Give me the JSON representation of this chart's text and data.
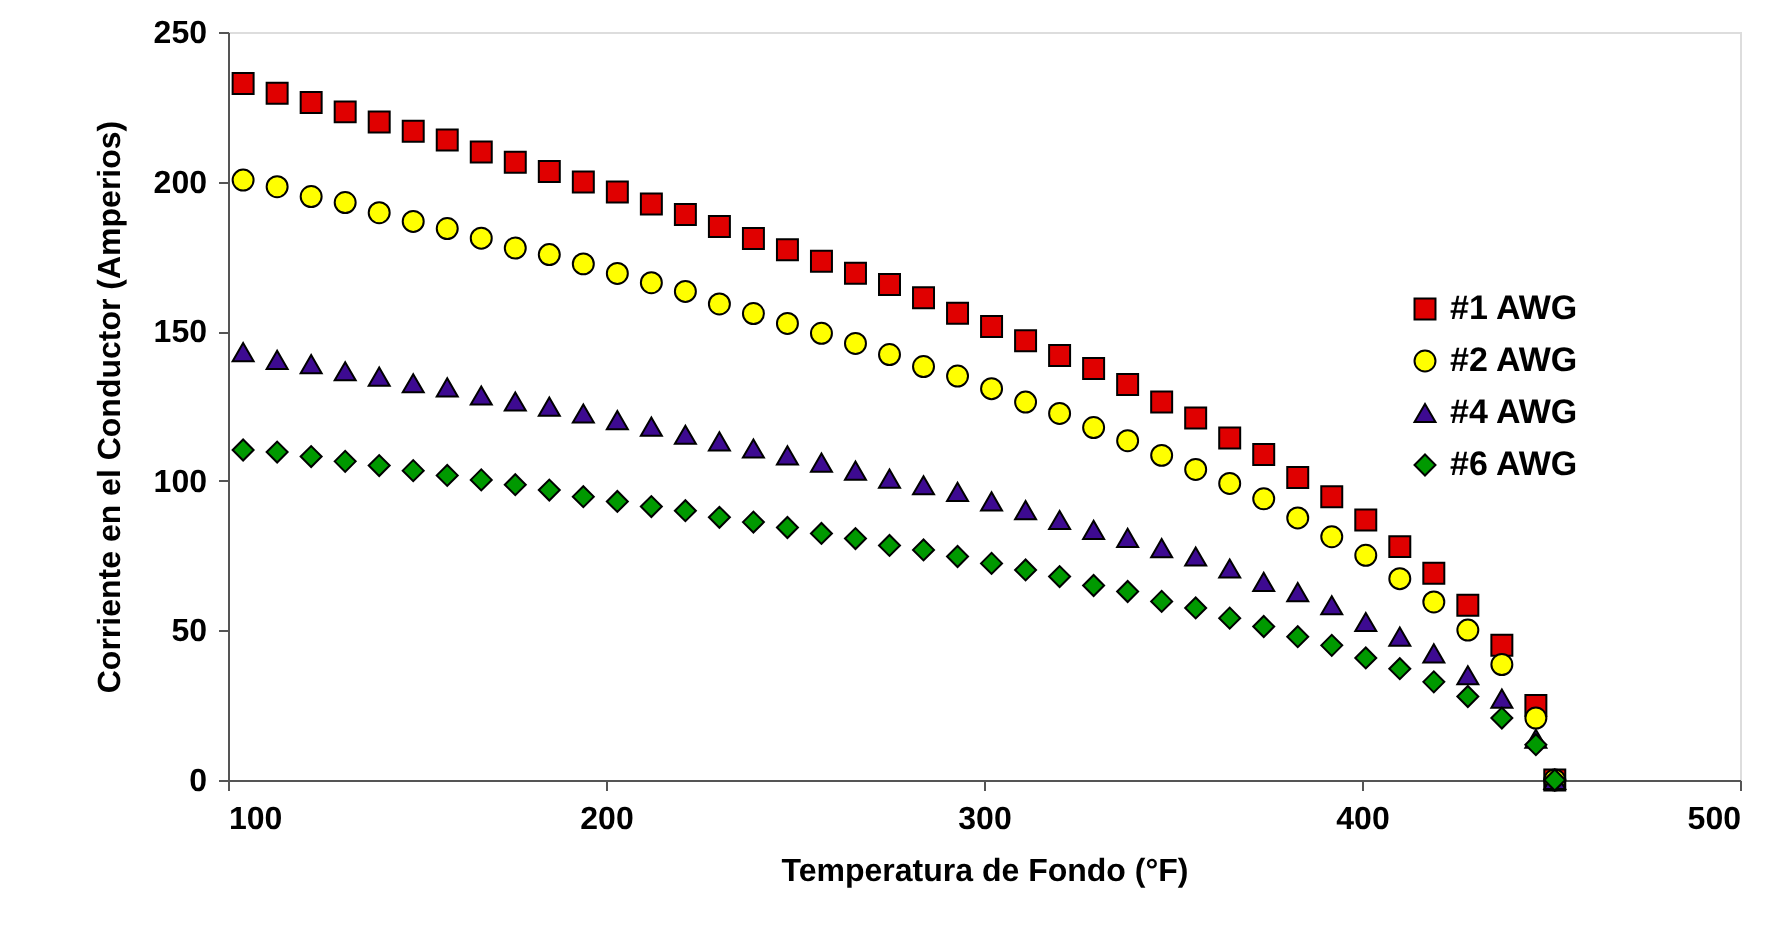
{
  "chart_data": {
    "type": "scatter",
    "xlabel": "Temperatura de Fondo (°F)",
    "ylabel": "Corriente en el Conductor (Amperios)",
    "x": [
      104,
      113,
      122,
      131,
      140,
      149,
      158,
      167,
      176,
      185,
      194,
      203,
      212,
      221,
      230,
      239,
      248,
      257,
      266,
      275,
      284,
      293,
      302,
      311,
      320,
      329,
      338,
      347,
      356,
      365,
      374,
      383,
      392,
      401,
      410,
      419,
      428,
      437,
      446,
      451
    ],
    "xlim": [
      100,
      500
    ],
    "xticks": [
      100,
      200,
      300,
      400,
      500
    ],
    "ylim": [
      0,
      250
    ],
    "yticks": [
      0,
      50,
      100,
      150,
      200,
      250
    ],
    "grid": false,
    "legend": "right",
    "series": [
      {
        "name": "#1 AWG",
        "color": "#e00000",
        "marker": "square",
        "values": [
          232.8,
          229.5,
          226.4,
          223.3,
          219.9,
          216.8,
          213.9,
          209.9,
          206.5,
          203.4,
          199.9,
          196.5,
          192.5,
          189.0,
          185.0,
          181.0,
          177.2,
          173.4,
          169.4,
          165.6,
          161.2,
          156.0,
          151.6,
          146.8,
          141.9,
          137.5,
          132.2,
          126.3,
          121.0,
          114.3,
          108.8,
          101.1,
          94.7,
          86.9,
          78.0,
          69.1,
          58.4,
          45.0,
          24.9,
          0
        ]
      },
      {
        "name": "#2 AWG",
        "color": "#ffff00",
        "marker": "circle",
        "values": [
          200.5,
          198.3,
          195.0,
          193.0,
          189.6,
          186.7,
          184.3,
          181.1,
          177.8,
          175.6,
          172.5,
          169.3,
          166.2,
          163.3,
          159.1,
          155.9,
          152.6,
          149.3,
          145.9,
          142.2,
          138.2,
          135.0,
          130.8,
          126.3,
          122.5,
          117.8,
          113.4,
          108.5,
          103.8,
          99.1,
          94.0,
          87.6,
          81.3,
          75.1,
          67.3,
          59.5,
          50.1,
          38.6,
          20.7,
          0
        ]
      },
      {
        "name": "#4 AWG",
        "color": "#3d0a91",
        "marker": "triangle",
        "values": [
          143.0,
          140.4,
          139.0,
          136.6,
          134.8,
          132.6,
          131.2,
          128.5,
          126.5,
          124.8,
          122.5,
          120.3,
          118.1,
          115.4,
          113.2,
          110.8,
          108.5,
          106.1,
          103.4,
          100.7,
          98.5,
          96.3,
          93.1,
          90.2,
          86.9,
          83.6,
          80.9,
          77.5,
          74.7,
          70.7,
          66.2,
          62.8,
          58.4,
          52.8,
          47.9,
          42.3,
          35.0,
          27.2,
          13.8,
          0
        ]
      },
      {
        "name": "#6 AWG",
        "color": "#009900",
        "marker": "diamond",
        "values": [
          110.3,
          109.6,
          108.1,
          106.5,
          105.1,
          103.4,
          101.8,
          100.3,
          98.7,
          96.9,
          94.7,
          93.1,
          91.4,
          90.0,
          87.8,
          86.2,
          84.4,
          82.4,
          80.7,
          78.4,
          76.9,
          74.7,
          72.4,
          70.2,
          68.0,
          65.0,
          63.0,
          59.7,
          57.5,
          54.1,
          51.3,
          47.9,
          45.0,
          40.8,
          37.2,
          32.8,
          27.9,
          20.7,
          11.8,
          0
        ]
      }
    ]
  }
}
